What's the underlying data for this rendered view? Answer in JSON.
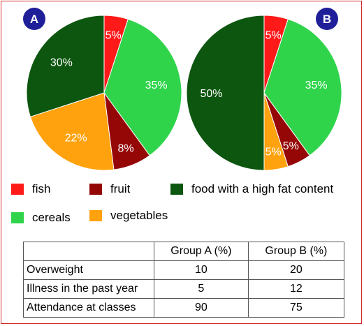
{
  "chart_data": [
    {
      "type": "pie",
      "panel_label": "A",
      "categories": [
        "fish",
        "cereals",
        "fruit",
        "vegetables",
        "food with a high fat content"
      ],
      "values": [
        5,
        35,
        8,
        22,
        30
      ],
      "value_labels": [
        "5%",
        "35%",
        "8%",
        "22%",
        "30%"
      ]
    },
    {
      "type": "pie",
      "panel_label": "B",
      "categories": [
        "fish",
        "cereals",
        "fruit",
        "vegetables",
        "food with a high fat content"
      ],
      "values": [
        5,
        35,
        5,
        5,
        50
      ],
      "value_labels": [
        "5%",
        "35%",
        "5%",
        "5%",
        "50%"
      ]
    },
    {
      "type": "table",
      "columns": [
        "",
        "Group A (%)",
        "Group B (%)"
      ],
      "rows": [
        {
          "label": "Overweight",
          "values": [
            "10",
            "20"
          ]
        },
        {
          "label": "Illness in the past year",
          "values": [
            "5",
            "12"
          ]
        },
        {
          "label": "Attendance at classes",
          "values": [
            "90",
            "75"
          ]
        }
      ]
    }
  ],
  "colors": {
    "fish": "#ff1a1a",
    "cereals": "#2fd44a",
    "fruit": "#950707",
    "vegetables": "#ffa20d",
    "food with a high fat content": "#0d560f",
    "badge": "#1f1f99",
    "frame": "#d42a2a"
  },
  "legend": [
    {
      "key": "fish",
      "label": "fish"
    },
    {
      "key": "fruit",
      "label": "fruit"
    },
    {
      "key": "food with a high fat content",
      "label": "food with a high fat content"
    },
    {
      "key": "cereals",
      "label": "cereals"
    },
    {
      "key": "vegetables",
      "label": "vegetables"
    }
  ]
}
